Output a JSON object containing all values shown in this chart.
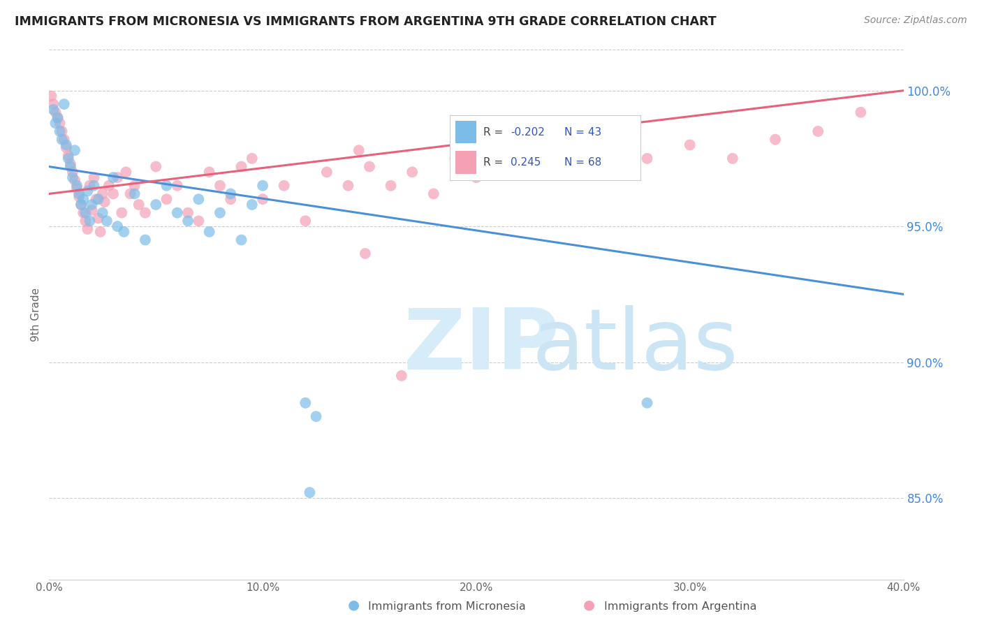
{
  "title": "IMMIGRANTS FROM MICRONESIA VS IMMIGRANTS FROM ARGENTINA 9TH GRADE CORRELATION CHART",
  "source": "Source: ZipAtlas.com",
  "ylabel": "9th Grade",
  "xlim": [
    0.0,
    40.0
  ],
  "ylim": [
    82.0,
    101.5
  ],
  "yticks": [
    85.0,
    90.0,
    95.0,
    100.0
  ],
  "ytick_labels": [
    "85.0%",
    "90.0%",
    "95.0%",
    "100.0%"
  ],
  "xticks": [
    0,
    10,
    20,
    30,
    40
  ],
  "xtick_labels": [
    "0.0%",
    "10.0%",
    "20.0%",
    "30.0%",
    "40.0%"
  ],
  "R_micronesia": -0.202,
  "N_micronesia": 43,
  "R_argentina": 0.245,
  "N_argentina": 68,
  "color_micronesia": "#7bbde8",
  "color_argentina": "#f4a0b5",
  "line_color_micronesia": "#4a90d9",
  "line_color_argentina": "#e8607a",
  "watermark_color": "#d6ecf8",
  "legend_R_color": "#3355bb",
  "legend_label_color": "#444444",
  "title_color": "#222222",
  "source_color": "#888888",
  "ytick_color": "#4488dd",
  "xtick_color": "#666666",
  "grid_color": "#cccccc",
  "mic_line_x0": 0.0,
  "mic_line_y0": 97.2,
  "mic_line_x1": 40.0,
  "mic_line_y1": 92.5,
  "arg_line_x0": 0.0,
  "arg_line_y0": 96.2,
  "arg_line_x1": 40.0,
  "arg_line_y1": 100.0,
  "micronesia_x": [
    0.2,
    0.3,
    0.4,
    0.5,
    0.6,
    0.7,
    0.8,
    0.9,
    1.0,
    1.1,
    1.2,
    1.3,
    1.4,
    1.5,
    1.6,
    1.7,
    1.8,
    1.9,
    2.0,
    2.1,
    2.3,
    2.5,
    2.7,
    3.0,
    3.2,
    3.5,
    4.0,
    4.5,
    5.0,
    5.5,
    6.0,
    6.5,
    7.0,
    7.5,
    8.0,
    8.5,
    9.0,
    9.5,
    10.0,
    12.0,
    12.5,
    28.0,
    12.2
  ],
  "micronesia_y": [
    99.3,
    98.8,
    99.0,
    98.5,
    98.2,
    99.5,
    98.0,
    97.5,
    97.2,
    96.8,
    97.8,
    96.5,
    96.2,
    95.8,
    96.0,
    95.5,
    96.3,
    95.2,
    95.8,
    96.5,
    96.0,
    95.5,
    95.2,
    96.8,
    95.0,
    94.8,
    96.2,
    94.5,
    95.8,
    96.5,
    95.5,
    95.2,
    96.0,
    94.8,
    95.5,
    96.2,
    94.5,
    95.8,
    96.5,
    88.5,
    88.0,
    88.5,
    85.2
  ],
  "argentina_x": [
    0.1,
    0.2,
    0.3,
    0.4,
    0.5,
    0.6,
    0.7,
    0.8,
    0.9,
    1.0,
    1.1,
    1.2,
    1.3,
    1.4,
    1.5,
    1.6,
    1.7,
    1.8,
    1.9,
    2.0,
    2.1,
    2.2,
    2.3,
    2.4,
    2.5,
    2.6,
    2.8,
    3.0,
    3.2,
    3.4,
    3.6,
    3.8,
    4.0,
    4.2,
    4.5,
    5.0,
    5.5,
    6.0,
    6.5,
    7.0,
    7.5,
    8.0,
    8.5,
    9.0,
    9.5,
    10.0,
    11.0,
    12.0,
    13.0,
    14.0,
    14.5,
    15.0,
    16.0,
    17.0,
    18.0,
    19.0,
    20.0,
    22.0,
    24.0,
    26.0,
    28.0,
    30.0,
    32.0,
    34.0,
    36.0,
    38.0,
    14.8,
    16.5
  ],
  "argentina_y": [
    99.8,
    99.5,
    99.2,
    99.0,
    98.8,
    98.5,
    98.2,
    97.9,
    97.6,
    97.3,
    97.0,
    96.7,
    96.4,
    96.1,
    95.8,
    95.5,
    95.2,
    94.9,
    96.5,
    95.6,
    96.8,
    96.0,
    95.3,
    94.8,
    96.2,
    95.9,
    96.5,
    96.2,
    96.8,
    95.5,
    97.0,
    96.2,
    96.5,
    95.8,
    95.5,
    97.2,
    96.0,
    96.5,
    95.5,
    95.2,
    97.0,
    96.5,
    96.0,
    97.2,
    97.5,
    96.0,
    96.5,
    95.2,
    97.0,
    96.5,
    97.8,
    97.2,
    96.5,
    97.0,
    96.2,
    97.5,
    96.8,
    97.2,
    97.5,
    97.0,
    97.5,
    98.0,
    97.5,
    98.2,
    98.5,
    99.2,
    94.0,
    89.5
  ]
}
